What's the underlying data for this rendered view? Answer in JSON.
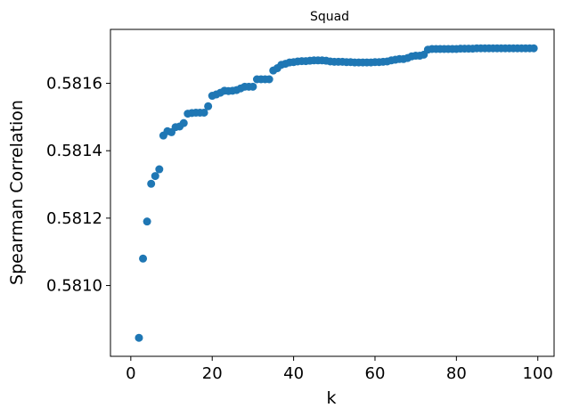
{
  "chart_data": {
    "type": "scatter",
    "title": "Squad",
    "xlabel": "k",
    "ylabel": "Spearman Correlation",
    "xlim": [
      -5,
      104
    ],
    "ylim": [
      0.58079,
      0.58176
    ],
    "xticks": [
      0,
      20,
      40,
      60,
      80,
      100
    ],
    "xtick_labels": [
      "0",
      "20",
      "40",
      "60",
      "80",
      "100"
    ],
    "yticks": [
      0.581,
      0.5812,
      0.5814,
      0.5816
    ],
    "ytick_labels": [
      "0.5810",
      "0.5812",
      "0.5814",
      "0.5816"
    ],
    "grid": false,
    "marker_color": "#1f77b4",
    "series": [
      {
        "x": [
          2,
          3,
          4,
          5,
          6,
          7,
          8,
          9,
          10,
          11,
          12,
          13,
          14,
          15,
          16,
          17,
          18,
          19,
          20,
          21,
          22,
          23,
          24,
          25,
          26,
          27,
          28,
          29,
          30,
          31,
          32,
          33,
          34,
          35,
          36,
          37,
          38,
          39,
          40,
          41,
          42,
          43,
          44,
          45,
          46,
          47,
          48,
          49,
          50,
          51,
          52,
          53,
          54,
          55,
          56,
          57,
          58,
          59,
          60,
          61,
          62,
          63,
          64,
          65,
          66,
          67,
          68,
          69,
          70,
          71,
          72,
          73,
          74,
          75,
          76,
          77,
          78,
          79,
          80,
          81,
          82,
          83,
          84,
          85,
          86,
          87,
          88,
          89,
          90,
          91,
          92,
          93,
          94,
          95,
          96,
          97,
          98,
          99
        ],
        "y": [
          0.580845,
          0.58108,
          0.58119,
          0.581302,
          0.581325,
          0.581345,
          0.581445,
          0.581458,
          0.581455,
          0.58147,
          0.581472,
          0.581482,
          0.58151,
          0.581512,
          0.581513,
          0.581513,
          0.581513,
          0.581532,
          0.581563,
          0.581567,
          0.581572,
          0.581578,
          0.581577,
          0.581578,
          0.58158,
          0.581585,
          0.58159,
          0.58159,
          0.58159,
          0.581612,
          0.581612,
          0.581612,
          0.581612,
          0.581638,
          0.581645,
          0.581655,
          0.581658,
          0.581662,
          0.581663,
          0.581665,
          0.581666,
          0.581666,
          0.581667,
          0.581668,
          0.581668,
          0.581668,
          0.581667,
          0.581665,
          0.581664,
          0.581664,
          0.581664,
          0.581663,
          0.581663,
          0.581662,
          0.581662,
          0.581662,
          0.581662,
          0.581662,
          0.581663,
          0.581663,
          0.581664,
          0.581665,
          0.581668,
          0.58167,
          0.581672,
          0.581672,
          0.581675,
          0.58168,
          0.581682,
          0.581682,
          0.581685,
          0.5817,
          0.581702,
          0.581702,
          0.581702,
          0.581702,
          0.581702,
          0.581702,
          0.581702,
          0.581703,
          0.581703,
          0.581703,
          0.581703,
          0.581704,
          0.581704,
          0.581704,
          0.581704,
          0.581704,
          0.581704,
          0.581704,
          0.581704,
          0.581704,
          0.581704,
          0.581704,
          0.581704,
          0.581704,
          0.581704,
          0.581704
        ]
      }
    ]
  }
}
